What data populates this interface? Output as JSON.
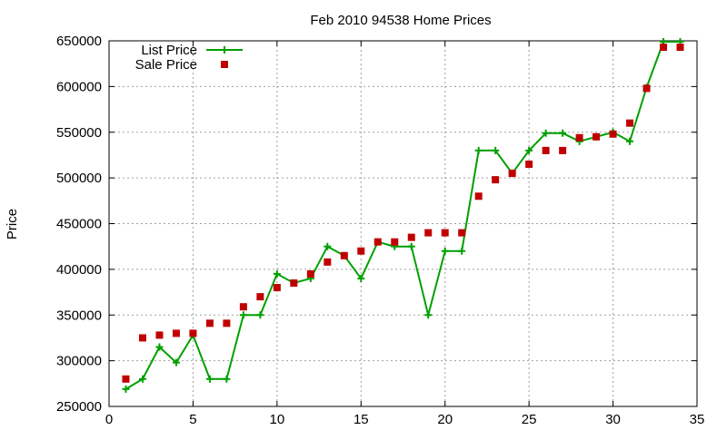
{
  "chart_data": {
    "type": "line",
    "title": "Feb 2010 94538 Home Prices",
    "xlabel": "",
    "ylabel": "Price",
    "xlim": [
      0,
      35
    ],
    "ylim": [
      250000,
      650000
    ],
    "xticks": [
      0,
      5,
      10,
      15,
      20,
      25,
      30,
      35
    ],
    "yticks": [
      250000,
      300000,
      350000,
      400000,
      450000,
      500000,
      550000,
      600000,
      650000
    ],
    "grid": true,
    "legend_position": "top-left",
    "series": [
      {
        "name": "List Price",
        "style": "line-plus",
        "color": "#00a000",
        "x": [
          1,
          2,
          3,
          4,
          5,
          6,
          7,
          8,
          9,
          10,
          11,
          12,
          13,
          14,
          15,
          16,
          17,
          18,
          19,
          20,
          21,
          22,
          23,
          24,
          25,
          26,
          27,
          28,
          29,
          30,
          31,
          32,
          33,
          34
        ],
        "y": [
          269000,
          280000,
          315000,
          298000,
          328000,
          280000,
          280000,
          350000,
          350000,
          395000,
          385000,
          390000,
          425000,
          415000,
          390000,
          430000,
          425000,
          425000,
          350000,
          420000,
          420000,
          530000,
          530000,
          505000,
          530000,
          549000,
          549000,
          540000,
          545000,
          550000,
          540000,
          599000,
          649000,
          649000
        ]
      },
      {
        "name": "Sale Price",
        "style": "square-points",
        "color": "#c00000",
        "x": [
          1,
          2,
          3,
          4,
          5,
          6,
          7,
          8,
          9,
          10,
          11,
          12,
          13,
          14,
          15,
          16,
          17,
          18,
          19,
          20,
          21,
          22,
          23,
          24,
          25,
          26,
          27,
          28,
          29,
          30,
          31,
          32,
          33,
          34
        ],
        "y": [
          280000,
          325000,
          328000,
          330000,
          330000,
          341000,
          341000,
          359000,
          370000,
          380000,
          385000,
          395000,
          408000,
          415000,
          420000,
          430000,
          430000,
          435000,
          440000,
          440000,
          440000,
          480000,
          498000,
          505000,
          515000,
          530000,
          530000,
          544000,
          545000,
          548000,
          560000,
          598000,
          643000,
          643000
        ]
      }
    ]
  }
}
